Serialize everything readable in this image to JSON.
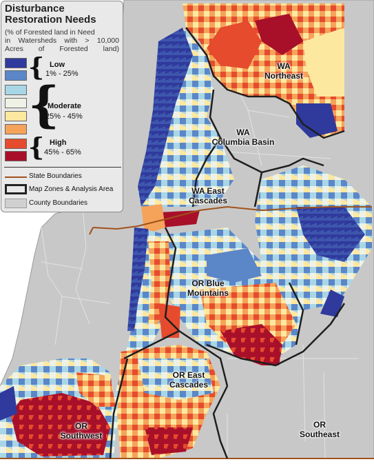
{
  "legend": {
    "title_line1": "Disturbance",
    "title_line2": "Restoration Needs",
    "subtitle_line1": "(% of Forested land in Need",
    "subtitle_line2": "in Watersheds with > 10,000",
    "subtitle_line3": "Acres of Forested land)",
    "classes": [
      {
        "name": "Low",
        "range": "1% - 25%",
        "colors": [
          "#2f3a9c",
          "#5b86c8"
        ]
      },
      {
        "name": "Moderate",
        "range": "25% - 45%",
        "colors": [
          "#a9d6e6",
          "#eef2e6",
          "#fde8a0",
          "#f5a35a"
        ]
      },
      {
        "name": "High",
        "range": "45% - 65%",
        "colors": [
          "#e64b2e",
          "#a8102a"
        ]
      }
    ],
    "items": [
      {
        "label": "State Boundaries",
        "color": "#a0521b",
        "icon": "line-swatch"
      },
      {
        "label": "Map Zones &  Analysis Area",
        "color": "#222222",
        "icon": "thick-outline-swatch"
      },
      {
        "label": "County Boundaries",
        "color": "#d0d0d0",
        "icon": "fill-swatch"
      }
    ]
  },
  "zones": {
    "wa_northeast": {
      "line1": "WA",
      "line2": "Northeast"
    },
    "wa_columbia_basin": {
      "line1": "WA",
      "line2": "Columbia Basin"
    },
    "wa_east_cascades": {
      "line1": "WA East",
      "line2": "Cascades"
    },
    "or_blue_mountains": {
      "line1": "OR Blue",
      "line2": "Mountains"
    },
    "or_east_cascades": {
      "line1": "OR East",
      "line2": "Cascades"
    },
    "or_southwest": {
      "line1": "OR",
      "line2": "Southwest"
    },
    "or_southeast": {
      "line1": "OR",
      "line2": "Southeast"
    }
  },
  "colors": {
    "background_land": "#c8c8c8",
    "outside_land": "#f4f4f4",
    "low_dark": "#2f3a9c",
    "low_light": "#5b86c8",
    "mod_1": "#a9d6e6",
    "mod_2": "#eef2e6",
    "mod_3": "#fde8a0",
    "mod_4": "#f5a35a",
    "high_1": "#e64b2e",
    "high_2": "#a8102a",
    "state_boundary": "#a0521b",
    "zone_outline": "#1e1e1e"
  }
}
